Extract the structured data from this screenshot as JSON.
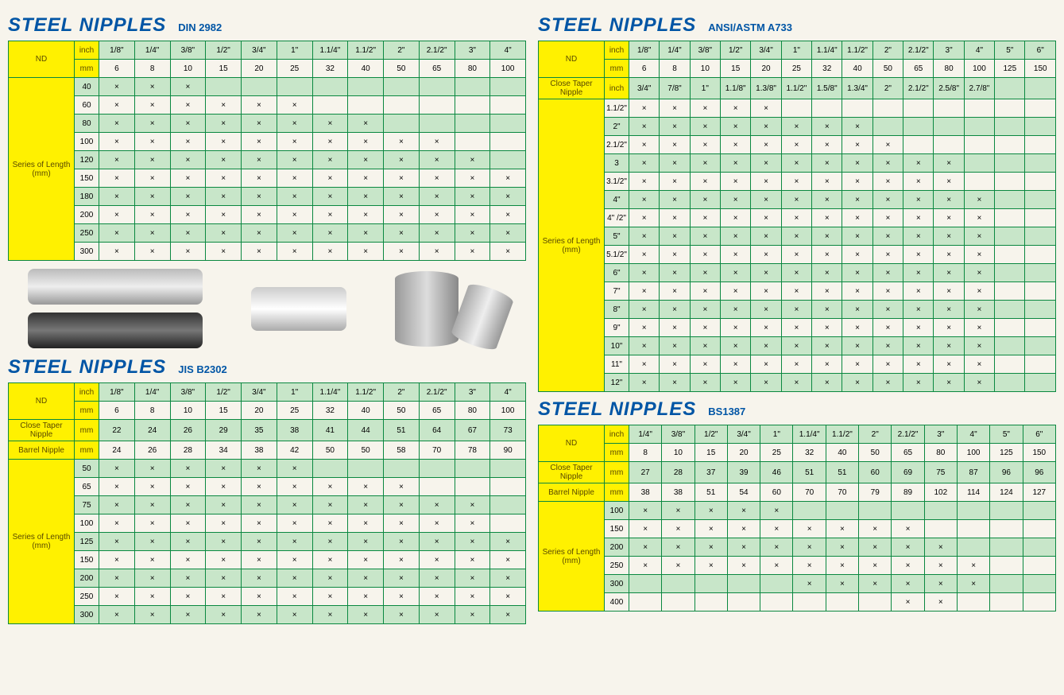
{
  "colors": {
    "yellow": "#fff100",
    "green": "#0a8840",
    "lightgreen": "#c8e6c9",
    "blue": "#0055a5",
    "bg": "#f7f4ec"
  },
  "x": "×",
  "t1": {
    "title": "STEEL NIPPLES",
    "sub": "DIN 2982",
    "nd": "ND",
    "ser": "Series of Length (mm)",
    "uh": [
      "inch",
      "mm"
    ],
    "inch": [
      "1/8\"",
      "1/4\"",
      "3/8\"",
      "1/2\"",
      "3/4\"",
      "1\"",
      "1.1/4\"",
      "1.1/2\"",
      "2\"",
      "2.1/2\"",
      "3\"",
      "4\""
    ],
    "mm": [
      "6",
      "8",
      "10",
      "15",
      "20",
      "25",
      "32",
      "40",
      "50",
      "65",
      "80",
      "100"
    ],
    "lens": [
      "40",
      "60",
      "80",
      "100",
      "120",
      "150",
      "180",
      "200",
      "250",
      "300"
    ],
    "counts": [
      3,
      6,
      8,
      10,
      11,
      12,
      12,
      12,
      12,
      12
    ]
  },
  "t2": {
    "title": "STEEL NIPPLES",
    "sub": "JIS B2302",
    "nd": "ND",
    "ser": "Series of Length (mm)",
    "ctn": "Close Taper Nipple",
    "bn": "Barrel Nipple",
    "uh": [
      "inch",
      "mm"
    ],
    "inch": [
      "1/8\"",
      "1/4\"",
      "3/8\"",
      "1/2\"",
      "3/4\"",
      "1\"",
      "1.1/4\"",
      "1.1/2\"",
      "2\"",
      "2.1/2\"",
      "3\"",
      "4\""
    ],
    "mm": [
      "6",
      "8",
      "10",
      "15",
      "20",
      "25",
      "32",
      "40",
      "50",
      "65",
      "80",
      "100"
    ],
    "ctnv": [
      "22",
      "24",
      "26",
      "29",
      "35",
      "38",
      "41",
      "44",
      "51",
      "64",
      "67",
      "73"
    ],
    "bnv": [
      "24",
      "26",
      "28",
      "34",
      "38",
      "42",
      "50",
      "50",
      "58",
      "70",
      "78",
      "90"
    ],
    "lens": [
      "50",
      "65",
      "75",
      "100",
      "125",
      "150",
      "200",
      "250",
      "300"
    ],
    "counts": [
      6,
      9,
      11,
      11,
      12,
      12,
      12,
      12,
      12
    ]
  },
  "t3": {
    "title": "STEEL NIPPLES",
    "sub": "ANSI/ASTM A733",
    "nd": "ND",
    "ser": "Series of Length (mm)",
    "ctn": "Close Taper Nipple",
    "uh": [
      "inch",
      "mm"
    ],
    "inch": [
      "1/8\"",
      "1/4\"",
      "3/8\"",
      "1/2\"",
      "3/4\"",
      "1\"",
      "1.1/4\"",
      "1.1/2\"",
      "2\"",
      "2.1/2\"",
      "3\"",
      "4\"",
      "5\"",
      "6\""
    ],
    "mm": [
      "6",
      "8",
      "10",
      "15",
      "20",
      "25",
      "32",
      "40",
      "50",
      "65",
      "80",
      "100",
      "125",
      "150"
    ],
    "ctnv": [
      "3/4\"",
      "7/8\"",
      "1\"",
      "1.1/8\"",
      "1.3/8\"",
      "1.1/2\"",
      "1.5/8\"",
      "1.3/4\"",
      "2\"",
      "2.1/2\"",
      "2.5/8\"",
      "2.7/8\"",
      "",
      ""
    ],
    "lens": [
      "1.1/2\"",
      "2\"",
      "2.1/2\"",
      "3",
      "3.1/2\"",
      "4\"",
      "4\" /2\"",
      "5\"",
      "5.1/2\"",
      "6\"",
      "7\"",
      "8\"",
      "9\"",
      "10\"",
      "11\"",
      "12\""
    ],
    "counts": [
      5,
      8,
      9,
      11,
      11,
      12,
      12,
      12,
      12,
      12,
      12,
      12,
      12,
      12,
      12,
      12
    ]
  },
  "t4": {
    "title": "STEEL NIPPLES",
    "sub": "BS1387",
    "nd": "ND",
    "ser": "Series of Length (mm)",
    "ctn": "Close Taper Nipple",
    "bn": "Barrel Nipple",
    "uh": [
      "inch",
      "mm"
    ],
    "inch": [
      "1/4\"",
      "3/8\"",
      "1/2\"",
      "3/4\"",
      "1\"",
      "1.1/4\"",
      "1.1/2\"",
      "2\"",
      "2.1/2\"",
      "3\"",
      "4\"",
      "5\"",
      "6\""
    ],
    "mm": [
      "8",
      "10",
      "15",
      "20",
      "25",
      "32",
      "40",
      "50",
      "65",
      "80",
      "100",
      "125",
      "150"
    ],
    "ctnv": [
      "27",
      "28",
      "37",
      "39",
      "46",
      "51",
      "51",
      "60",
      "69",
      "75",
      "87",
      "96",
      "96"
    ],
    "bnv": [
      "38",
      "38",
      "51",
      "54",
      "60",
      "70",
      "70",
      "79",
      "89",
      "102",
      "114",
      "124",
      "127"
    ],
    "lens": [
      "100",
      "150",
      "200",
      "250",
      "300",
      "400"
    ],
    "rows": [
      [
        1,
        1,
        1,
        1,
        1,
        0,
        0,
        0,
        0,
        0,
        0,
        0,
        0
      ],
      [
        1,
        1,
        1,
        1,
        1,
        1,
        1,
        1,
        1,
        0,
        0,
        0,
        0
      ],
      [
        1,
        1,
        1,
        1,
        1,
        1,
        1,
        1,
        1,
        1,
        0,
        0,
        0
      ],
      [
        1,
        1,
        1,
        1,
        1,
        1,
        1,
        1,
        1,
        1,
        1,
        0,
        0
      ],
      [
        0,
        0,
        0,
        0,
        0,
        1,
        1,
        1,
        1,
        1,
        1,
        0,
        0
      ],
      [
        0,
        0,
        0,
        0,
        0,
        0,
        0,
        0,
        1,
        1,
        0,
        0,
        0
      ]
    ]
  }
}
